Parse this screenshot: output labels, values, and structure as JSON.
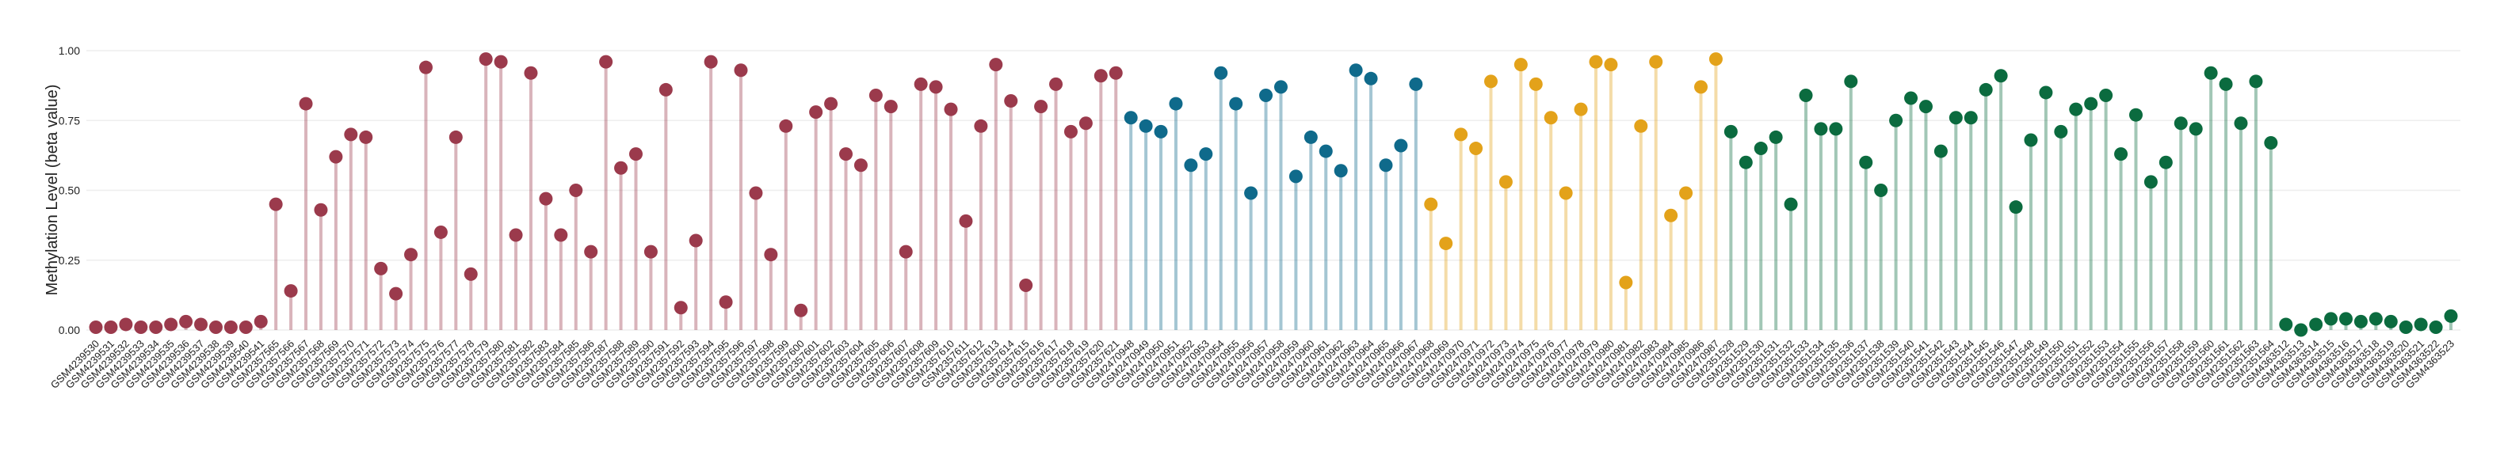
{
  "chart_data": {
    "type": "lollipop",
    "y_label": "Methylation Level (beta value)",
    "categories": [
      "GSM4239530",
      "GSM4239531",
      "GSM4239532",
      "GSM4239533",
      "GSM4239534",
      "GSM4239535",
      "GSM4239536",
      "GSM4239537",
      "GSM4239538",
      "GSM4239539",
      "GSM4239540",
      "GSM4239541",
      "GSM2357565",
      "GSM2357566",
      "GSM2357567",
      "GSM2357568",
      "GSM2357569",
      "GSM2357570",
      "GSM2357571",
      "GSM2357572",
      "GSM2357573",
      "GSM2357574",
      "GSM2357575",
      "GSM2357576",
      "GSM2357577",
      "GSM2357578",
      "GSM2357579",
      "GSM2357580",
      "GSM2357581",
      "GSM2357582",
      "GSM2357583",
      "GSM2357584",
      "GSM2357585",
      "GSM2357586",
      "GSM2357587",
      "GSM2357588",
      "GSM2357589",
      "GSM2357590",
      "GSM2357591",
      "GSM2357592",
      "GSM2357593",
      "GSM2357594",
      "GSM2357595",
      "GSM2357596",
      "GSM2357597",
      "GSM2357598",
      "GSM2357599",
      "GSM2357600",
      "GSM2357601",
      "GSM2357602",
      "GSM2357603",
      "GSM2357604",
      "GSM2357605",
      "GSM2357606",
      "GSM2357607",
      "GSM2357608",
      "GSM2357609",
      "GSM2357610",
      "GSM2357611",
      "GSM2357612",
      "GSM2357613",
      "GSM2357614",
      "GSM2357615",
      "GSM2357616",
      "GSM2357617",
      "GSM2357618",
      "GSM2357619",
      "GSM2357620",
      "GSM2357621",
      "GSM2470948",
      "GSM2470949",
      "GSM2470950",
      "GSM2470951",
      "GSM2470952",
      "GSM2470953",
      "GSM2470954",
      "GSM2470955",
      "GSM2470956",
      "GSM2470957",
      "GSM2470958",
      "GSM2470959",
      "GSM2470960",
      "GSM2470961",
      "GSM2470962",
      "GSM2470963",
      "GSM2470964",
      "GSM2470965",
      "GSM2470966",
      "GSM2470967",
      "GSM2470968",
      "GSM2470969",
      "GSM2470970",
      "GSM2470971",
      "GSM2470972",
      "GSM2470973",
      "GSM2470974",
      "GSM2470975",
      "GSM2470976",
      "GSM2470977",
      "GSM2470978",
      "GSM2470979",
      "GSM2470980",
      "GSM2470981",
      "GSM2470982",
      "GSM2470983",
      "GSM2470984",
      "GSM2470985",
      "GSM2470986",
      "GSM2470987",
      "GSM2351528",
      "GSM2351529",
      "GSM2351530",
      "GSM2351531",
      "GSM2351532",
      "GSM2351533",
      "GSM2351534",
      "GSM2351535",
      "GSM2351536",
      "GSM2351537",
      "GSM2351538",
      "GSM2351539",
      "GSM2351540",
      "GSM2351541",
      "GSM2351542",
      "GSM2351543",
      "GSM2351544",
      "GSM2351545",
      "GSM2351546",
      "GSM2351547",
      "GSM2351548",
      "GSM2351549",
      "GSM2351550",
      "GSM2351551",
      "GSM2351552",
      "GSM2351553",
      "GSM2351554",
      "GSM2351555",
      "GSM2351556",
      "GSM2351557",
      "GSM2351558",
      "GSM2351559",
      "GSM2351560",
      "GSM2351561",
      "GSM2351562",
      "GSM2351563",
      "GSM2351564",
      "GSM4363512",
      "GSM4363513",
      "GSM4363514",
      "GSM4363515",
      "GSM4363516",
      "GSM4363517",
      "GSM4363518",
      "GSM4363519",
      "GSM4363520",
      "GSM4363521",
      "GSM4363522",
      "GSM4363523"
    ],
    "values": [
      0.01,
      0.01,
      0.02,
      0.01,
      0.01,
      0.02,
      0.03,
      0.02,
      0.01,
      0.01,
      0.01,
      0.03,
      0.45,
      0.14,
      0.81,
      0.43,
      0.62,
      0.7,
      0.69,
      0.22,
      0.13,
      0.27,
      0.94,
      0.35,
      0.69,
      0.2,
      0.97,
      0.96,
      0.34,
      0.92,
      0.47,
      0.34,
      0.5,
      0.28,
      0.96,
      0.58,
      0.63,
      0.28,
      0.86,
      0.08,
      0.32,
      0.96,
      0.1,
      0.93,
      0.49,
      0.27,
      0.73,
      0.07,
      0.78,
      0.81,
      0.63,
      0.59,
      0.84,
      0.8,
      0.28,
      0.88,
      0.87,
      0.79,
      0.39,
      0.73,
      0.95,
      0.82,
      0.16,
      0.8,
      0.88,
      0.71,
      0.74,
      0.91,
      0.92,
      0.76,
      0.73,
      0.71,
      0.81,
      0.59,
      0.63,
      0.92,
      0.81,
      0.49,
      0.84,
      0.87,
      0.55,
      0.69,
      0.64,
      0.57,
      0.93,
      0.9,
      0.59,
      0.66,
      0.88,
      0.45,
      0.31,
      0.7,
      0.65,
      0.89,
      0.53,
      0.95,
      0.88,
      0.76,
      0.49,
      0.79,
      0.96,
      0.95,
      0.17,
      0.73,
      0.96,
      0.41,
      0.49,
      0.87,
      0.97,
      0.71,
      0.6,
      0.65,
      0.69,
      0.45,
      0.84,
      0.72,
      0.72,
      0.89,
      0.6,
      0.5,
      0.75,
      0.83,
      0.8,
      0.64,
      0.76,
      0.76,
      0.86,
      0.91,
      0.44,
      0.68,
      0.85,
      0.71,
      0.79,
      0.81,
      0.84,
      0.63,
      0.77,
      0.53,
      0.6,
      0.74,
      0.72,
      0.92,
      0.88,
      0.74,
      0.89,
      0.67,
      0.02,
      0.0,
      0.02,
      0.04,
      0.04,
      0.03,
      0.04,
      0.03,
      0.01,
      0.02,
      0.01,
      0.05
    ],
    "colors": [
      "#9b3a4c",
      "#9b3a4c",
      "#9b3a4c",
      "#9b3a4c",
      "#9b3a4c",
      "#9b3a4c",
      "#9b3a4c",
      "#9b3a4c",
      "#9b3a4c",
      "#9b3a4c",
      "#9b3a4c",
      "#9b3a4c",
      "#9b3a4c",
      "#9b3a4c",
      "#9b3a4c",
      "#9b3a4c",
      "#9b3a4c",
      "#9b3a4c",
      "#9b3a4c",
      "#9b3a4c",
      "#9b3a4c",
      "#9b3a4c",
      "#9b3a4c",
      "#9b3a4c",
      "#9b3a4c",
      "#9b3a4c",
      "#9b3a4c",
      "#9b3a4c",
      "#9b3a4c",
      "#9b3a4c",
      "#9b3a4c",
      "#9b3a4c",
      "#9b3a4c",
      "#9b3a4c",
      "#9b3a4c",
      "#9b3a4c",
      "#9b3a4c",
      "#9b3a4c",
      "#9b3a4c",
      "#9b3a4c",
      "#9b3a4c",
      "#9b3a4c",
      "#9b3a4c",
      "#9b3a4c",
      "#9b3a4c",
      "#9b3a4c",
      "#9b3a4c",
      "#9b3a4c",
      "#9b3a4c",
      "#9b3a4c",
      "#9b3a4c",
      "#9b3a4c",
      "#9b3a4c",
      "#9b3a4c",
      "#9b3a4c",
      "#9b3a4c",
      "#9b3a4c",
      "#9b3a4c",
      "#9b3a4c",
      "#9b3a4c",
      "#9b3a4c",
      "#9b3a4c",
      "#9b3a4c",
      "#9b3a4c",
      "#9b3a4c",
      "#9b3a4c",
      "#9b3a4c",
      "#9b3a4c",
      "#9b3a4c",
      "#0f6a8b",
      "#0f6a8b",
      "#0f6a8b",
      "#0f6a8b",
      "#0f6a8b",
      "#0f6a8b",
      "#0f6a8b",
      "#0f6a8b",
      "#0f6a8b",
      "#0f6a8b",
      "#0f6a8b",
      "#0f6a8b",
      "#0f6a8b",
      "#0f6a8b",
      "#0f6a8b",
      "#0f6a8b",
      "#0f6a8b",
      "#0f6a8b",
      "#0f6a8b",
      "#0f6a8b",
      "#e3a21a",
      "#e3a21a",
      "#e3a21a",
      "#e3a21a",
      "#e3a21a",
      "#e3a21a",
      "#e3a21a",
      "#e3a21a",
      "#e3a21a",
      "#e3a21a",
      "#e3a21a",
      "#e3a21a",
      "#e3a21a",
      "#e3a21a",
      "#e3a21a",
      "#e3a21a",
      "#e3a21a",
      "#e3a21a",
      "#e3a21a",
      "#e3a21a",
      "#0b6b3f",
      "#0b6b3f",
      "#0b6b3f",
      "#0b6b3f",
      "#0b6b3f",
      "#0b6b3f",
      "#0b6b3f",
      "#0b6b3f",
      "#0b6b3f",
      "#0b6b3f",
      "#0b6b3f",
      "#0b6b3f",
      "#0b6b3f",
      "#0b6b3f",
      "#0b6b3f",
      "#0b6b3f",
      "#0b6b3f",
      "#0b6b3f",
      "#0b6b3f",
      "#0b6b3f",
      "#0b6b3f",
      "#0b6b3f",
      "#0b6b3f",
      "#0b6b3f",
      "#0b6b3f",
      "#0b6b3f",
      "#0b6b3f",
      "#0b6b3f",
      "#0b6b3f",
      "#0b6b3f",
      "#0b6b3f",
      "#0b6b3f",
      "#0b6b3f",
      "#0b6b3f",
      "#0b6b3f",
      "#0b6b3f",
      "#0b6b3f",
      "#0b6b3f",
      "#0b6b3f",
      "#0b6b3f",
      "#0b6b3f",
      "#0b6b3f",
      "#0b6b3f",
      "#0b6b3f",
      "#0b6b3f",
      "#0b6b3f",
      "#0b6b3f",
      "#0b6b3f",
      "#0b6b3f"
    ],
    "ylim": [
      0,
      1
    ],
    "yticks": [
      {
        "value": 0,
        "label": "0.00"
      },
      {
        "value": 0.25,
        "label": "0.25"
      },
      {
        "value": 0.5,
        "label": "0.50"
      },
      {
        "value": 0.75,
        "label": "0.75"
      },
      {
        "value": 1,
        "label": "1.00"
      }
    ],
    "grid": true
  }
}
